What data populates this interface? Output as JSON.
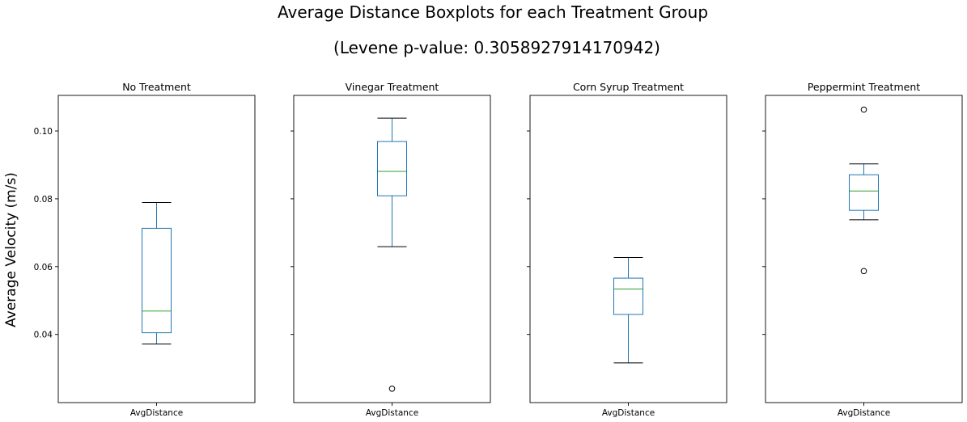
{
  "chart_data": {
    "type": "boxplot",
    "title": "Average Distance Boxplots for each Treatment Group",
    "subtitle": "(Levene p-value: 0.3058927914170942)",
    "ylabel": "Average Velocity (m/s)",
    "xtick_label": "AvgDistance",
    "shared_y": true,
    "ylim": [
      0.0199,
      0.1105
    ],
    "yticks": [
      {
        "value": 0.04,
        "label": "0.04"
      },
      {
        "value": 0.06,
        "label": "0.06"
      },
      {
        "value": 0.08,
        "label": "0.08"
      },
      {
        "value": 0.1,
        "label": "0.10"
      }
    ],
    "grid": false,
    "colors": {
      "box": "#1f77b4",
      "median": "#2ca02c",
      "cap": "#000000"
    },
    "panels": [
      {
        "title": "No Treatment",
        "whisker_low": 0.0372,
        "q1": 0.0405,
        "median": 0.0469,
        "q3": 0.0713,
        "whisker_high": 0.0789,
        "outliers": []
      },
      {
        "title": "Vinegar Treatment",
        "whisker_low": 0.0659,
        "q1": 0.0809,
        "median": 0.0881,
        "q3": 0.0969,
        "whisker_high": 0.1038,
        "outliers": [
          0.024
        ]
      },
      {
        "title": "Corn Syrup Treatment",
        "whisker_low": 0.0316,
        "q1": 0.0459,
        "median": 0.0534,
        "q3": 0.0566,
        "whisker_high": 0.0627,
        "outliers": []
      },
      {
        "title": "Peppermint Treatment",
        "whisker_low": 0.0738,
        "q1": 0.0766,
        "median": 0.0823,
        "q3": 0.0871,
        "whisker_high": 0.0903,
        "outliers": [
          0.0587,
          0.1063
        ]
      }
    ]
  }
}
